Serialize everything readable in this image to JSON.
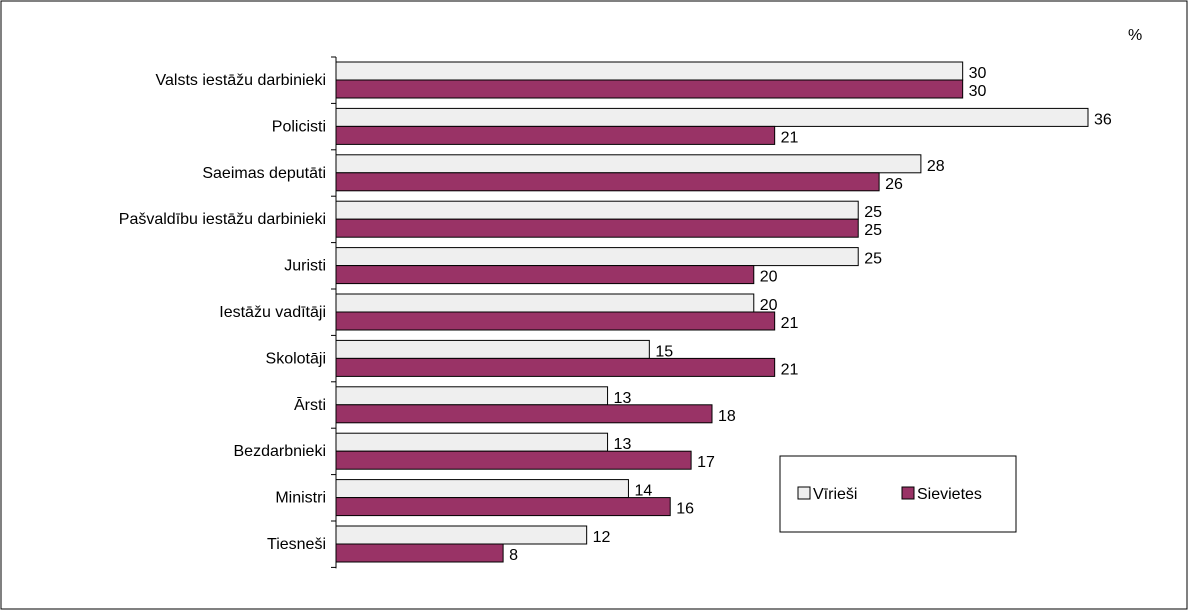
{
  "chart_data": {
    "type": "bar",
    "orientation": "horizontal",
    "unit_label": "%",
    "categories": [
      "Valsts iestāžu darbinieki",
      "Policisti",
      "Saeimas deputāti",
      "Pašvaldību iestāžu darbinieki",
      "Juristi",
      "Iestāžu vadītāji",
      "Skolotāji",
      "Ārsti",
      "Bezdarbnieki",
      "Ministri",
      "Tiesneši"
    ],
    "series": [
      {
        "name": "Vīrieši",
        "color": "#efefef",
        "values": [
          30,
          36,
          28,
          25,
          25,
          20,
          15,
          13,
          13,
          14,
          12
        ]
      },
      {
        "name": "Sievietes",
        "color": "#993366",
        "values": [
          30,
          21,
          26,
          25,
          20,
          21,
          21,
          18,
          17,
          16,
          8
        ]
      }
    ],
    "xlim": [
      0,
      36
    ],
    "grid": false,
    "legend_position": "bottom-right"
  }
}
